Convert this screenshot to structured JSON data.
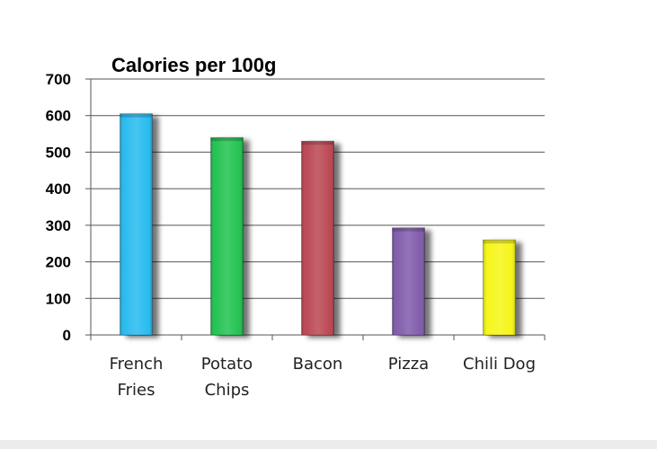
{
  "chart_data": {
    "type": "bar",
    "title": "Calories per 100g",
    "categories": [
      [
        "French",
        "Fries"
      ],
      [
        "Potato",
        "Chips"
      ],
      [
        "Bacon"
      ],
      [
        "Pizza"
      ],
      [
        "Chili Dog"
      ]
    ],
    "values": [
      605,
      540,
      530,
      293,
      260
    ],
    "colors": [
      "#1fb8ee",
      "#19c04a",
      "#b8404b",
      "#7b55a8",
      "#f5f50e"
    ],
    "ylim": [
      0,
      700
    ],
    "yticks": [
      0,
      100,
      200,
      300,
      400,
      500,
      600,
      700
    ],
    "xlabel": "",
    "ylabel": "",
    "grid": true,
    "legend": "none"
  }
}
